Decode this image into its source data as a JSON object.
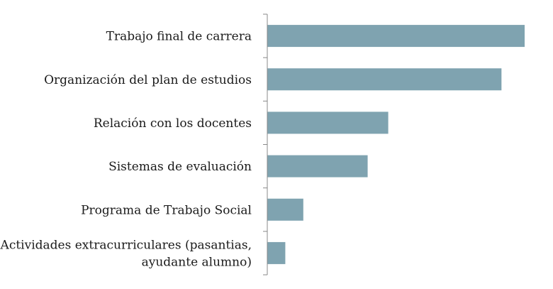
{
  "chart_data": {
    "type": "bar",
    "orientation": "horizontal",
    "categories": [
      "Trabajo final de carrera",
      "Organización del plan de estudios",
      "Relación con los docentes",
      "Sistemas de evaluación",
      "Programa de Trabajo Social",
      "Actividades extracurriculares (pasantias, ayudante alumno)"
    ],
    "category_lines": [
      [
        "Trabajo final de carrera"
      ],
      [
        "Organización del plan de estudios"
      ],
      [
        "Relación con los docentes"
      ],
      [
        "Sistemas de evaluación"
      ],
      [
        "Programa de Trabajo Social"
      ],
      [
        "Actividades extracurriculares (pasantias,",
        "ayudante alumno)"
      ]
    ],
    "values": [
      100,
      91,
      47,
      39,
      14,
      7
    ],
    "xlim": [
      0,
      100
    ],
    "title": "",
    "xlabel": "",
    "ylabel": "",
    "grid": false,
    "legend": "none",
    "bar_color": "#7fa3b0",
    "axis_color": "#888888"
  }
}
